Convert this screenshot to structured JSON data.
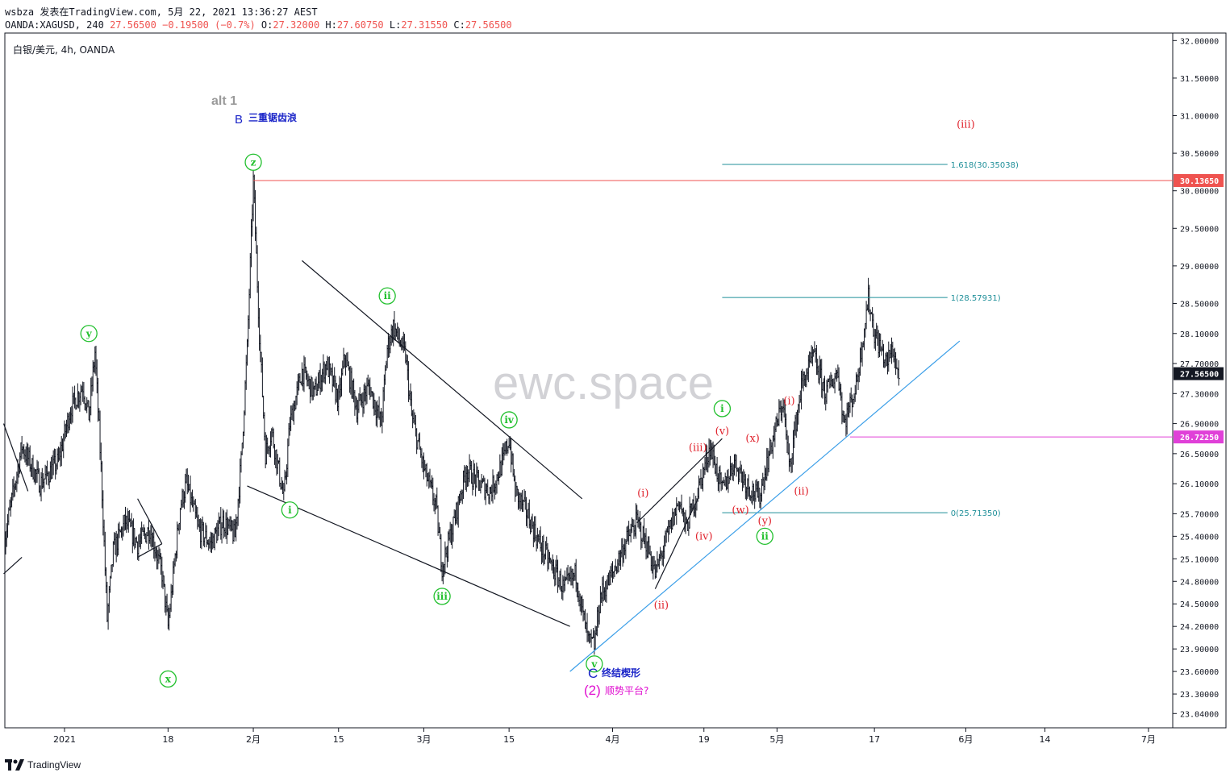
{
  "header": {
    "line1": "wsbza 发表在TradingView.com, 5月 22, 2021 13:36:27 AEST",
    "symbol": "OANDA:XAGUSD, 240",
    "last": "27.56500",
    "change": "−0.19500 (−0.7%)",
    "o_label": "O:",
    "o": "27.32000",
    "h_label": "H:",
    "h": "27.60750",
    "l_label": "L:",
    "l": "27.31550",
    "c_label": "C:",
    "c": "27.56500"
  },
  "legend": "白银/美元, 4h, OANDA",
  "watermark": "ewc.space",
  "brand": "TradingView",
  "colors": {
    "green": "#22c02e",
    "red": "#e0242e",
    "blue": "#1a24c8",
    "magenta": "#e010d0",
    "teal": "#1f8f99",
    "trend": "#3a9ee8",
    "level_red": "#ef5350",
    "level_pink": "#e040d8",
    "price_tag": "#131722"
  },
  "chart_data": {
    "type": "candlestick",
    "interval": "4h",
    "ylim": [
      22.85,
      32.1
    ],
    "y_ticks": [
      23.04,
      23.3,
      23.6,
      23.9,
      24.2,
      24.5,
      24.8,
      25.1,
      25.4,
      25.7,
      26.1,
      26.5,
      26.9,
      27.3,
      27.7,
      28.1,
      28.5,
      29.0,
      29.5,
      30.0,
      30.5,
      31.0,
      31.5,
      32.0
    ],
    "y_tick_labels": [
      "23.04000",
      "23.30000",
      "23.60000",
      "23.90000",
      "24.20000",
      "24.50000",
      "24.80000",
      "25.10000",
      "25.40000",
      "25.70000",
      "26.10000",
      "26.50000",
      "26.90000",
      "27.30000",
      "27.70000",
      "28.10000",
      "28.50000",
      "29.00000",
      "29.50000",
      "30.00000",
      "30.50000",
      "31.00000",
      "31.50000",
      "32.00000"
    ],
    "x_ticks": [
      {
        "label": "2021",
        "day": 0
      },
      {
        "label": "18",
        "day": 17
      },
      {
        "label": "2月",
        "day": 31
      },
      {
        "label": "15",
        "day": 45
      },
      {
        "label": "3月",
        "day": 59
      },
      {
        "label": "15",
        "day": 73
      },
      {
        "label": "4月",
        "day": 90
      },
      {
        "label": "19",
        "day": 105
      },
      {
        "label": "5月",
        "day": 117
      },
      {
        "label": "17",
        "day": 133
      },
      {
        "label": "6月",
        "day": 148
      },
      {
        "label": "14",
        "day": 161
      },
      {
        "label": "7月",
        "day": 178
      }
    ],
    "path": [
      [
        -10,
        25.3
      ],
      [
        -7,
        26.6
      ],
      [
        -4,
        26.1
      ],
      [
        -1,
        26.4
      ],
      [
        1,
        27.1
      ],
      [
        3,
        27.4
      ],
      [
        4,
        27.0
      ],
      [
        5,
        27.85
      ],
      [
        6,
        26.3
      ],
      [
        7,
        24.3
      ],
      [
        8,
        25.2
      ],
      [
        10,
        25.6
      ],
      [
        12,
        25.3
      ],
      [
        14,
        25.5
      ],
      [
        16,
        24.9
      ],
      [
        17,
        24.2
      ],
      [
        18,
        25.0
      ],
      [
        19,
        25.8
      ],
      [
        20,
        26.1
      ],
      [
        22,
        25.5
      ],
      [
        24,
        25.3
      ],
      [
        26,
        25.6
      ],
      [
        28,
        25.4
      ],
      [
        29,
        26.4
      ],
      [
        30,
        27.9
      ],
      [
        31,
        30.13
      ],
      [
        32,
        28.1
      ],
      [
        33,
        26.5
      ],
      [
        34,
        26.8
      ],
      [
        36,
        25.9
      ],
      [
        37,
        26.9
      ],
      [
        39,
        27.6
      ],
      [
        41,
        27.3
      ],
      [
        43,
        27.7
      ],
      [
        45,
        27.2
      ],
      [
        46,
        27.8
      ],
      [
        48,
        27.1
      ],
      [
        50,
        27.4
      ],
      [
        52,
        26.9
      ],
      [
        53,
        27.9
      ],
      [
        54,
        28.2
      ],
      [
        56,
        27.8
      ],
      [
        57,
        27.0
      ],
      [
        59,
        26.3
      ],
      [
        61,
        25.8
      ],
      [
        62,
        25.0
      ],
      [
        64,
        25.6
      ],
      [
        66,
        26.3
      ],
      [
        68,
        26.1
      ],
      [
        70,
        26.0
      ],
      [
        72,
        26.4
      ],
      [
        73,
        26.7
      ],
      [
        74,
        26.0
      ],
      [
        76,
        25.7
      ],
      [
        78,
        25.3
      ],
      [
        80,
        25.0
      ],
      [
        82,
        24.7
      ],
      [
        84,
        24.9
      ],
      [
        85,
        24.4
      ],
      [
        86,
        24.0
      ],
      [
        87,
        23.95
      ],
      [
        88,
        24.6
      ],
      [
        90,
        24.9
      ],
      [
        92,
        25.3
      ],
      [
        94,
        25.6
      ],
      [
        96,
        25.2
      ],
      [
        97,
        24.9
      ],
      [
        99,
        25.4
      ],
      [
        101,
        25.9
      ],
      [
        102,
        25.5
      ],
      [
        104,
        26.0
      ],
      [
        106,
        26.6
      ],
      [
        108,
        26.0
      ],
      [
        110,
        26.4
      ],
      [
        112,
        26.1
      ],
      [
        114,
        25.9
      ],
      [
        116,
        26.6
      ],
      [
        118,
        27.2
      ],
      [
        119,
        26.3
      ],
      [
        121,
        27.4
      ],
      [
        123,
        27.8
      ],
      [
        125,
        27.3
      ],
      [
        127,
        27.6
      ],
      [
        128,
        26.9
      ],
      [
        130,
        27.4
      ],
      [
        132,
        28.58
      ],
      [
        133,
        28.1
      ],
      [
        135,
        27.7
      ],
      [
        136,
        27.9
      ],
      [
        137,
        27.5
      ]
    ],
    "fib_levels": [
      {
        "label": "1.618(30.35038)",
        "value": 30.35038
      },
      {
        "label": "1(28.57931)",
        "value": 28.57931
      },
      {
        "label": "0(25.71350)",
        "value": 25.7135
      }
    ],
    "price_tags": [
      {
        "label": "30.13650",
        "value": 30.1365,
        "color": "#ef5350"
      },
      {
        "label": "27.56500",
        "value": 27.565,
        "color": "#131722"
      },
      {
        "label": "26.72250",
        "value": 26.7225,
        "color": "#e040d8"
      }
    ],
    "wave_labels_green": [
      {
        "text": "y",
        "day": 4,
        "price": 28.1
      },
      {
        "text": "x",
        "day": 17,
        "price": 23.5
      },
      {
        "text": "z",
        "day": 31,
        "price": 30.38
      },
      {
        "text": "i",
        "day": 37,
        "price": 25.75
      },
      {
        "text": "ii",
        "day": 53,
        "price": 28.6
      },
      {
        "text": "iii",
        "day": 62,
        "price": 24.6
      },
      {
        "text": "iv",
        "day": 73,
        "price": 26.95
      },
      {
        "text": "v",
        "day": 87,
        "price": 23.7
      },
      {
        "text": "i",
        "day": 108,
        "price": 27.1
      },
      {
        "text": "ii",
        "day": 115,
        "price": 25.4
      }
    ],
    "wave_labels_red": [
      {
        "text": "(i)",
        "day": 95,
        "price": 25.97
      },
      {
        "text": "(ii)",
        "day": 98,
        "price": 24.48
      },
      {
        "text": "(iii)",
        "day": 104,
        "price": 26.58
      },
      {
        "text": "(iv)",
        "day": 105,
        "price": 25.4
      },
      {
        "text": "(v)",
        "day": 108,
        "price": 26.8
      },
      {
        "text": "(w)",
        "day": 111,
        "price": 25.75
      },
      {
        "text": "(x)",
        "day": 113,
        "price": 26.7
      },
      {
        "text": "(y)",
        "day": 115,
        "price": 25.6
      },
      {
        "text": "(i)",
        "day": 119,
        "price": 27.2
      },
      {
        "text": "(ii)",
        "day": 121,
        "price": 26.0
      },
      {
        "text": "(iii)",
        "day": 148,
        "price": 30.88
      }
    ],
    "annotations": {
      "alt": "alt 1",
      "b_letter": "B",
      "b_text": "三重锯齿浪",
      "c_letter": "C",
      "c_text": "终结楔形",
      "two_label": "(2)",
      "two_text": "顺势平台?"
    }
  }
}
